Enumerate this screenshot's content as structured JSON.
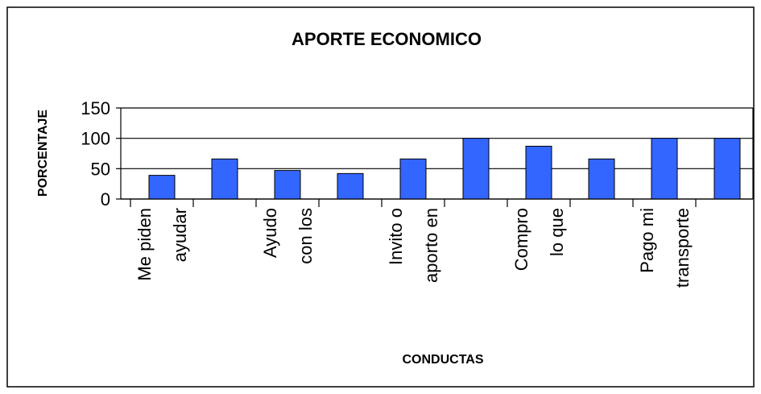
{
  "chart_data": {
    "type": "bar",
    "title": "APORTE ECONOMICO",
    "x_label": "CONDUCTAS",
    "y_label": "PORCENTAJE",
    "categories": [
      "Me piden\nayudar",
      null,
      "Ayudo\ncon los",
      null,
      "Invito o\naporto en",
      null,
      "Compro\nlo que",
      null,
      "Pago mi\ntransporte",
      null
    ],
    "values": [
      39,
      66,
      47,
      42,
      66,
      100,
      87,
      66,
      100,
      100
    ],
    "color": "#3366ff",
    "ylim": [
      0,
      150
    ],
    "yticks": [
      0,
      50,
      100,
      150
    ],
    "grid": true
  }
}
